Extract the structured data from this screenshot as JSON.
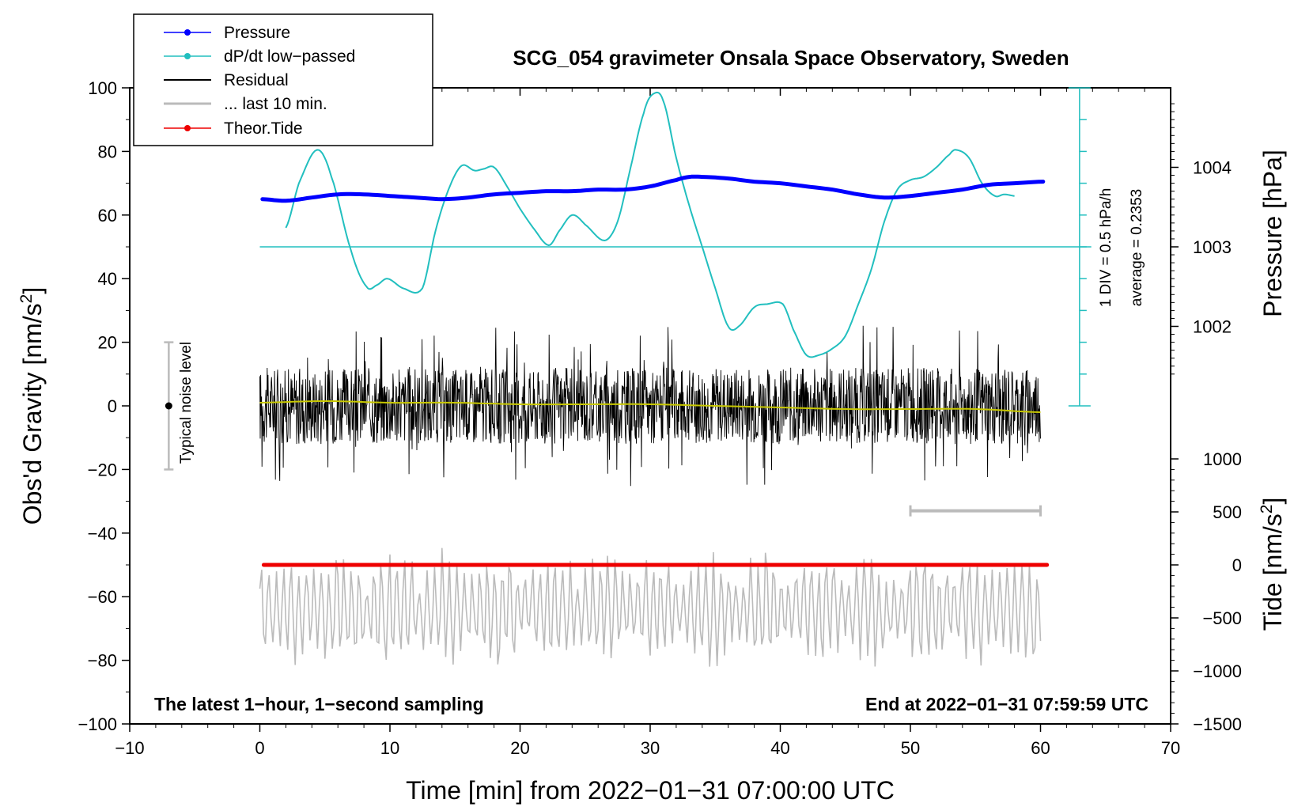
{
  "chart_data": {
    "type": "line",
    "title": "SCG_054 gravimeter Onsala Space Observatory, Sweden",
    "xlabel": "Time [min] from 2022−01−31 07:00:00 UTC",
    "ylabel": "Obs'd Gravity [nm/s",
    "ylabel_sup": "2",
    "ylabel_close": "]",
    "xlim": [
      -10,
      70
    ],
    "ylim": [
      -100,
      100
    ],
    "x_ticks": [
      -10,
      0,
      10,
      20,
      30,
      40,
      50,
      60,
      70
    ],
    "x_tick_labels": [
      "−10",
      "0",
      "10",
      "20",
      "30",
      "40",
      "50",
      "60",
      "70"
    ],
    "y_ticks": [
      -100,
      -80,
      -60,
      -40,
      -20,
      0,
      20,
      40,
      60,
      80,
      100
    ],
    "y_tick_labels": [
      "−100",
      "−80",
      "−60",
      "−40",
      "−20",
      "0",
      "20",
      "40",
      "60",
      "80",
      "100"
    ],
    "right_pressure_axis": {
      "label": "Pressure [hPa]",
      "ticks": [
        1002,
        1003,
        1004
      ],
      "tick_labels": [
        "1002",
        "1003",
        "1004"
      ],
      "gravity_at_1003": 50,
      "gravity_per_hPa": 25
    },
    "right_tide_axis": {
      "label": "Tide [nm/s",
      "label_sup": "2",
      "label_close": "]",
      "ticks": [
        -1500,
        -1000,
        -500,
        0,
        500,
        1000
      ],
      "tick_labels": [
        "−1500",
        "−1000",
        "−500",
        "0",
        "500",
        "1000"
      ],
      "gravity_at_0": -50,
      "gravity_per_unit": 0.03333
    },
    "dpdt_scale": {
      "div_label": "1 DIV = 0.5 hPa/h",
      "average_label": "average = 0.2353",
      "x": 63,
      "y_from": 0,
      "y_to": 100,
      "step": 10,
      "baseline_y": 50
    },
    "noise_bar": {
      "label": "Typical noise level",
      "x": -7,
      "y_center": 0,
      "y_low": -20,
      "y_high": 20
    },
    "window_bar": {
      "x_from": 50,
      "x_to": 60,
      "y": -33
    },
    "footer_left": "The latest 1−hour, 1−second sampling",
    "footer_right": "End at 2022−01−31 07:59:59 UTC",
    "series": [
      {
        "name": "Pressure",
        "color": "#0000ff",
        "kind": "thick-line",
        "x": [
          0.2,
          2,
          4,
          6,
          8,
          10,
          12,
          14,
          16,
          18,
          20,
          22,
          24,
          26,
          28,
          30,
          32,
          33,
          34,
          36,
          38,
          40,
          42,
          44,
          46,
          48,
          50,
          52,
          54,
          56,
          58,
          60.2
        ],
        "y": [
          65,
          64.5,
          65.5,
          66.5,
          66.5,
          66,
          65.5,
          65,
          65.5,
          66.5,
          67,
          67.5,
          67.5,
          68,
          68,
          69,
          71,
          72,
          72,
          71.5,
          70.5,
          70,
          69,
          68,
          66.5,
          65.5,
          66,
          67,
          68,
          69.5,
          70,
          70.5
        ]
      },
      {
        "name": "dP/dt low−passed",
        "color": "#22bfbf",
        "kind": "line",
        "x": [
          2,
          3,
          4.4,
          5.5,
          7,
          8.2,
          9,
          9.8,
          11,
          12.5,
          13.5,
          14.5,
          15.5,
          16.5,
          17.2,
          18,
          19,
          20,
          21,
          22.2,
          23,
          24,
          25,
          26.5,
          27.5,
          28.5,
          29.5,
          30.2,
          31,
          32,
          33,
          34,
          35,
          36,
          36.8,
          38,
          39,
          40.2,
          41,
          42,
          43,
          44,
          45,
          46,
          47,
          48,
          49,
          50,
          51,
          52,
          53,
          53.5,
          54.5,
          55.5,
          56.5,
          57.2,
          58
        ],
        "y": [
          56,
          70,
          80.5,
          72,
          49,
          37.5,
          38,
          40,
          37,
          37,
          55,
          68,
          75.5,
          74,
          74.5,
          75,
          69,
          62,
          56,
          50.5,
          55,
          60,
          57,
          52,
          58,
          75,
          92,
          98,
          96,
          78,
          63,
          50,
          37,
          25,
          25,
          31,
          32,
          32,
          24,
          16,
          16,
          18,
          22,
          32,
          43,
          58,
          68,
          71,
          72,
          75,
          79,
          80.5,
          78,
          70,
          66,
          66.5,
          66
        ]
      },
      {
        "name": "Residual",
        "color": "#000000",
        "kind": "noise",
        "x_range": [
          0,
          60
        ],
        "amplitude_typical": 12,
        "amplitude_peak": 30,
        "mean": 0
      },
      {
        "name": "... last 10 min.",
        "color": "#bbbbbb",
        "kind": "oscillation",
        "x_range": [
          0,
          60
        ],
        "center": -64,
        "amplitude_typical": 12,
        "amplitude_peak": 22
      },
      {
        "name": "Theor.Tide",
        "color": "#ee0000",
        "kind": "thick-line",
        "x": [
          0.3,
          10,
          20,
          30,
          40,
          50,
          60.5
        ],
        "y": [
          -50,
          -50,
          -50,
          -50,
          -50,
          -50,
          -50
        ]
      },
      {
        "name": "Residual mean (low−passed)",
        "color": "#c8c800",
        "kind": "line",
        "legend": false,
        "x": [
          0,
          5,
          10,
          15,
          20,
          25,
          30,
          35,
          40,
          45,
          50,
          55,
          60
        ],
        "y": [
          1,
          1.5,
          1,
          1,
          0.5,
          0.5,
          0.5,
          0,
          -0.5,
          -1,
          -1,
          -1,
          -2
        ]
      }
    ]
  }
}
